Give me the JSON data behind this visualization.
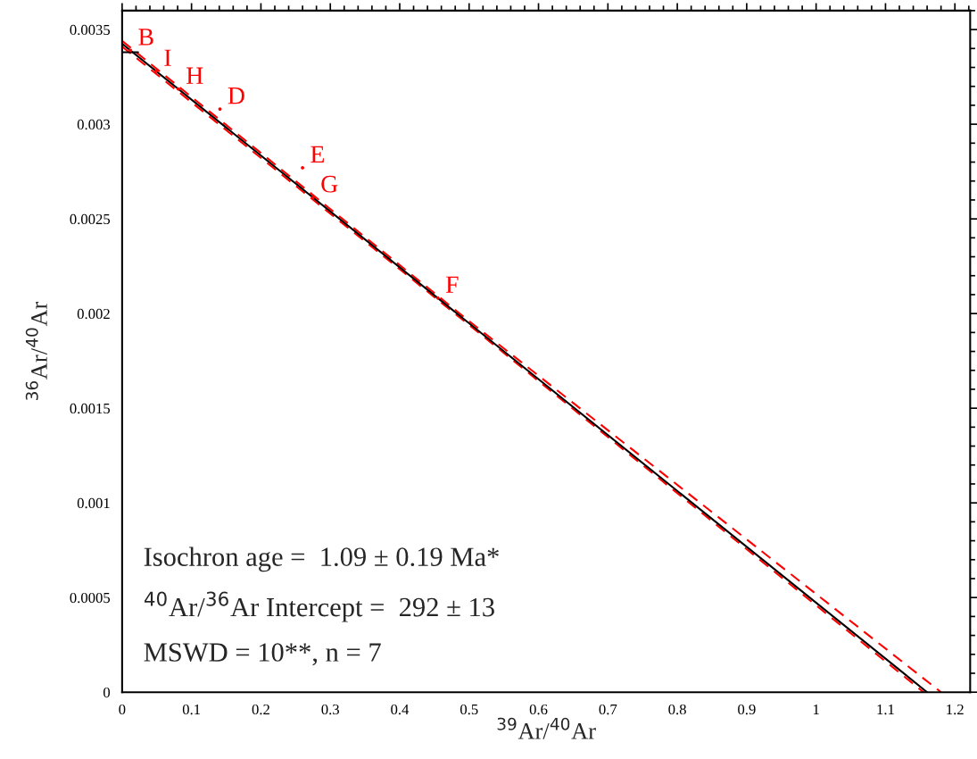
{
  "chart_data": {
    "type": "line",
    "xlabel": "$^{39}$Ar/$^{40}$Ar",
    "ylabel": "$^{36}$Ar/$^{40}$Ar",
    "xlim": [
      0,
      1.222
    ],
    "ylim": [
      0,
      0.0036
    ],
    "xticks": [
      0,
      {
        "value": 0.02,
        "label": null
      },
      {
        "value": 0.04,
        "label": null
      },
      {
        "value": 0.06,
        "label": null
      },
      {
        "value": 0.08,
        "label": null
      },
      0.1,
      {
        "value": 0.12,
        "label": null
      },
      {
        "value": 0.14,
        "label": null
      },
      {
        "value": 0.16,
        "label": null
      },
      {
        "value": 0.18,
        "label": null
      },
      0.2,
      {
        "value": 0.22,
        "label": null
      },
      {
        "value": 0.24,
        "label": null
      },
      {
        "value": 0.26,
        "label": null
      },
      {
        "value": 0.28,
        "label": null
      },
      0.3,
      {
        "value": 0.32,
        "label": null
      },
      {
        "value": 0.34,
        "label": null
      },
      {
        "value": 0.36,
        "label": null
      },
      {
        "value": 0.38,
        "label": null
      },
      0.4,
      {
        "value": 0.42,
        "label": null
      },
      {
        "value": 0.44,
        "label": null
      },
      {
        "value": 0.46,
        "label": null
      },
      {
        "value": 0.48,
        "label": null
      },
      0.5,
      {
        "value": 0.52,
        "label": null
      },
      {
        "value": 0.54,
        "label": null
      },
      {
        "value": 0.56,
        "label": null
      },
      {
        "value": 0.58,
        "label": null
      },
      0.6,
      {
        "value": 0.62,
        "label": null
      },
      {
        "value": 0.64,
        "label": null
      },
      {
        "value": 0.66,
        "label": null
      },
      {
        "value": 0.68,
        "label": null
      },
      0.7,
      {
        "value": 0.72,
        "label": null
      },
      {
        "value": 0.74,
        "label": null
      },
      {
        "value": 0.76,
        "label": null
      },
      {
        "value": 0.78,
        "label": null
      },
      0.8,
      {
        "value": 0.82,
        "label": null
      },
      {
        "value": 0.84,
        "label": null
      },
      {
        "value": 0.86,
        "label": null
      },
      {
        "value": 0.88,
        "label": null
      },
      0.9,
      {
        "value": 0.92,
        "label": null
      },
      {
        "value": 0.94,
        "label": null
      },
      {
        "value": 0.96,
        "label": null
      },
      {
        "value": 0.98,
        "label": null
      },
      1,
      {
        "value": 1.02,
        "label": null
      },
      {
        "value": 1.04,
        "label": null
      },
      {
        "value": 1.06,
        "label": null
      },
      {
        "value": 1.08,
        "label": null
      },
      1.1,
      {
        "value": 1.12,
        "label": null
      },
      {
        "value": 1.14,
        "label": null
      },
      {
        "value": 1.16,
        "label": null
      },
      {
        "value": 1.18,
        "label": null
      },
      1.2,
      {
        "value": 1.22,
        "label": null
      }
    ],
    "yticks": [
      0,
      {
        "value": 0.0001,
        "label": null
      },
      {
        "value": 0.0002,
        "label": null
      },
      {
        "value": 0.0003,
        "label": null
      },
      {
        "value": 0.0004,
        "label": null
      },
      0.0005,
      {
        "value": 0.0006,
        "label": null
      },
      {
        "value": 0.0007,
        "label": null
      },
      {
        "value": 0.0008,
        "label": null
      },
      {
        "value": 0.0009,
        "label": null
      },
      0.001,
      {
        "value": 0.0011,
        "label": null
      },
      {
        "value": 0.0012,
        "label": null
      },
      {
        "value": 0.0013,
        "label": null
      },
      {
        "value": 0.0014,
        "label": null
      },
      0.0015,
      {
        "value": 0.0016,
        "label": null
      },
      {
        "value": 0.0017,
        "label": null
      },
      {
        "value": 0.0018,
        "label": null
      },
      {
        "value": 0.0019,
        "label": null
      },
      0.002,
      {
        "value": 0.0021,
        "label": null
      },
      {
        "value": 0.0022,
        "label": null
      },
      {
        "value": 0.0023,
        "label": null
      },
      {
        "value": 0.0024,
        "label": null
      },
      0.0025,
      {
        "value": 0.0026,
        "label": null
      },
      {
        "value": 0.0027,
        "label": null
      },
      {
        "value": 0.0028,
        "label": null
      },
      {
        "value": 0.0029,
        "label": null
      },
      0.003,
      {
        "value": 0.0031,
        "label": null
      },
      {
        "value": 0.0032,
        "label": null
      },
      {
        "value": 0.0033,
        "label": null
      },
      {
        "value": 0.0034,
        "label": null
      },
      0.0035,
      {
        "value": 0.0036,
        "label": null
      }
    ],
    "series": [
      {
        "color": "#ff0000",
        "line_style": "dashed",
        "x": [
          0,
          0.5,
          1.18
        ],
        "values": [
          0.00344,
          0.00196,
          0
        ]
      },
      {
        "color": "#ff0000",
        "line_style": "dashed",
        "x": [
          0,
          0.5,
          1.155
        ],
        "values": [
          0.00341,
          0.00194,
          0
        ]
      },
      {
        "color": "#000000",
        "line_style": "solid",
        "x": [
          0,
          1.16
        ],
        "values": [
          0.003425,
          0
        ]
      },
      {
        "color": "#000000",
        "line_style": "solid",
        "x": [
          0,
          0.023
        ],
        "values": [
          0.00338,
          0.00338
        ]
      },
      {
        "type": "scatter",
        "color": "#ff0000",
        "marker": "circle",
        "x": [
          0.012,
          0.049,
          0.081,
          0.141,
          0.26,
          0.275,
          0.455
        ],
        "values": [
          0.00339,
          0.00328,
          0.003186,
          0.00308,
          0.00277,
          0.002613,
          0.002082
        ]
      }
    ],
    "annotations": [
      {
        "text": "B",
        "x": 0.012,
        "y": 0.00339
      },
      {
        "text": "I",
        "x": 0.049,
        "y": 0.00328
      },
      {
        "text": "H",
        "x": 0.081,
        "y": 0.003186
      },
      {
        "text": "D",
        "x": 0.141,
        "y": 0.00308
      },
      {
        "text": "E",
        "x": 0.26,
        "y": 0.00277
      },
      {
        "text": "G",
        "x": 0.275,
        "y": 0.002613
      },
      {
        "text": "F",
        "x": 0.455,
        "y": 0.002082
      },
      "Isochron age =  1.09 ± 0.19 Ma*",
      "$^{40}$Ar/$^{36}$Ar Intercept =  292 ± 13",
      "MSWD = 10**, n = 7"
    ],
    "grid": false,
    "legend": false
  }
}
